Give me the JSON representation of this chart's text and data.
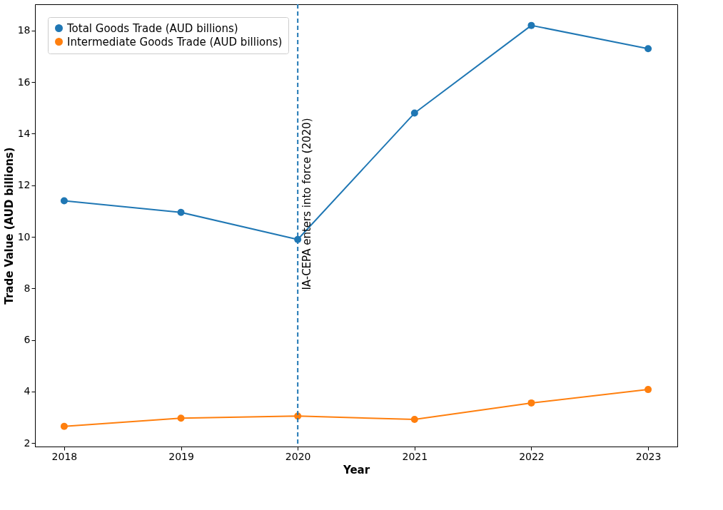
{
  "chart_data": {
    "type": "line",
    "xlabel": "Year",
    "ylabel": "Trade Value (AUD billions)",
    "x": [
      2018,
      2019,
      2020,
      2021,
      2022,
      2023
    ],
    "series": [
      {
        "name": "Total Goods Trade (AUD billions)",
        "color": "#1f77b4",
        "values": [
          11.4,
          10.95,
          9.9,
          14.8,
          18.2,
          17.3
        ]
      },
      {
        "name": "Intermediate Goods Trade (AUD billions)",
        "color": "#ff7f0e",
        "values": [
          2.65,
          2.97,
          3.05,
          2.92,
          3.56,
          4.08
        ]
      }
    ],
    "xlim": [
      2017.75,
      2023.25
    ],
    "xticks": [
      2018,
      2019,
      2020,
      2021,
      2022,
      2023
    ],
    "ylim": [
      1.87,
      19.02
    ],
    "yticks": [
      2,
      4,
      6,
      8,
      10,
      12,
      14,
      16,
      18
    ],
    "ref_lines": [
      {
        "axis": "x",
        "value": 2020,
        "label": "IA-CEPA enters into force (2020)",
        "color": "#1f77b4",
        "line_style": "dashed"
      }
    ],
    "grid": false,
    "legend": "top left",
    "marker": "circle",
    "line_style": "solid"
  }
}
